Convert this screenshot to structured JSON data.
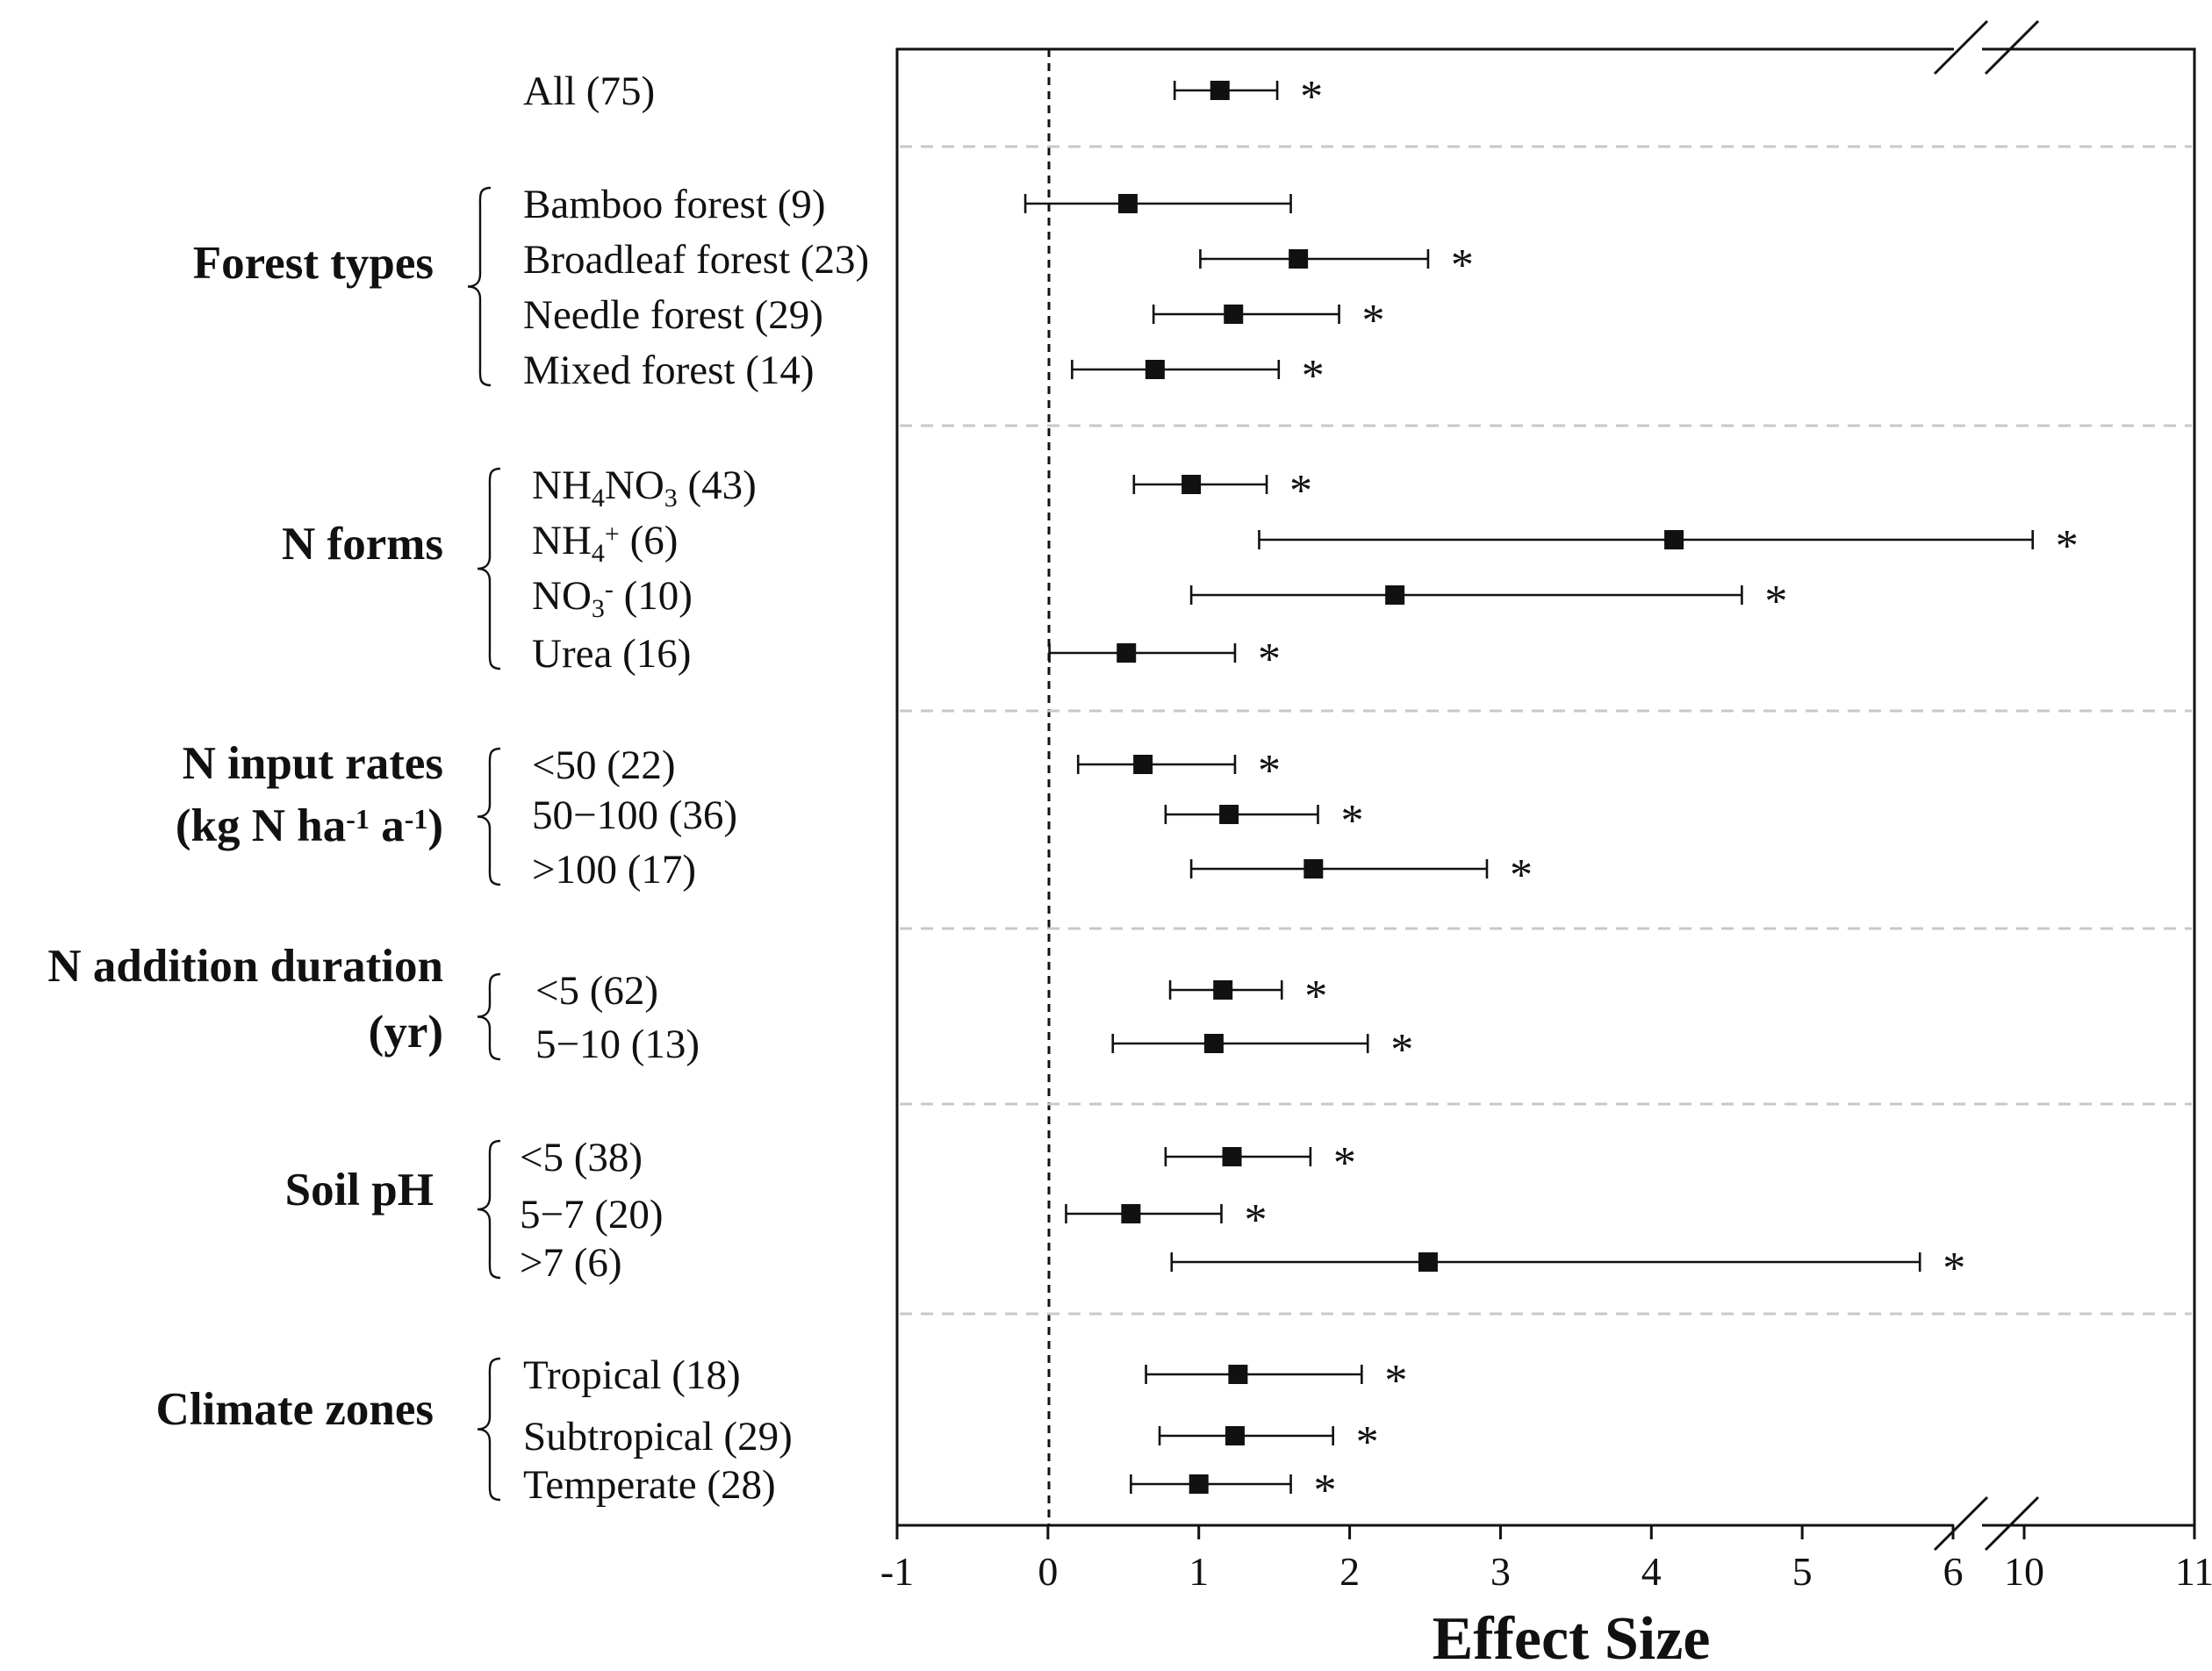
{
  "chart_data": {
    "type": "forest",
    "xlabel": "Effect Size",
    "axis_segments": [
      {
        "range": [
          -1,
          6
        ],
        "ticks": [
          "-1",
          "0",
          "1",
          "2",
          "3",
          "4",
          "5",
          "6"
        ]
      },
      {
        "range": [
          10,
          11
        ],
        "ticks": [
          "10",
          "11"
        ]
      }
    ],
    "reference_line": 0,
    "groups": [
      {
        "name": "",
        "items": [
          {
            "label": "All (75)",
            "mean": 1.14,
            "low": 0.84,
            "high": 1.52,
            "sig": "*"
          }
        ]
      },
      {
        "name": "Forest types",
        "items": [
          {
            "label": "Bamboo forest (9)",
            "mean": 0.53,
            "low": -0.15,
            "high": 1.61,
            "sig": ""
          },
          {
            "label": "Broadleaf forest (23)",
            "mean": 1.66,
            "low": 1.01,
            "high": 2.52,
            "sig": "*"
          },
          {
            "label": "Needle forest (29)",
            "mean": 1.23,
            "low": 0.7,
            "high": 1.93,
            "sig": "*"
          },
          {
            "label": "Mixed forest (14)",
            "mean": 0.71,
            "low": 0.16,
            "high": 1.53,
            "sig": "*"
          }
        ]
      },
      {
        "name": "N forms",
        "items": [
          {
            "label": "NH4NO3 (43)",
            "mean": 0.95,
            "low": 0.57,
            "high": 1.45,
            "sig": "*"
          },
          {
            "label": "NH4+ (6)",
            "mean": 4.15,
            "low": 1.4,
            "high": 10.05,
            "sig": "*"
          },
          {
            "label": "NO3- (10)",
            "mean": 2.3,
            "low": 0.95,
            "high": 4.6,
            "sig": "*"
          },
          {
            "label": "Urea (16)",
            "mean": 0.52,
            "low": 0.01,
            "high": 1.24,
            "sig": "*"
          }
        ]
      },
      {
        "name": "N input rates (kg N ha-1 a-1)",
        "items": [
          {
            "label": "<50 (22)",
            "mean": 0.63,
            "low": 0.2,
            "high": 1.24,
            "sig": "*"
          },
          {
            "label": "50−100 (36)",
            "mean": 1.2,
            "low": 0.78,
            "high": 1.79,
            "sig": "*"
          },
          {
            "label": ">100 (17)",
            "mean": 1.76,
            "low": 0.95,
            "high": 2.91,
            "sig": "*"
          }
        ]
      },
      {
        "name": "N addition duration (yr)",
        "items": [
          {
            "label": "<5 (62)",
            "mean": 1.16,
            "low": 0.81,
            "high": 1.55,
            "sig": "*"
          },
          {
            "label": "5−10 (13)",
            "mean": 1.1,
            "low": 0.43,
            "high": 2.12,
            "sig": "*"
          }
        ]
      },
      {
        "name": "Soil pH",
        "items": [
          {
            "label": "<5 (38)",
            "mean": 1.22,
            "low": 0.78,
            "high": 1.74,
            "sig": "*"
          },
          {
            "label": "5−7 (20)",
            "mean": 0.55,
            "low": 0.12,
            "high": 1.15,
            "sig": "*"
          },
          {
            "label": ">7 (6)",
            "mean": 2.52,
            "low": 0.82,
            "high": 5.78,
            "sig": "*"
          }
        ]
      },
      {
        "name": "Climate zones",
        "items": [
          {
            "label": "Tropical (18)",
            "mean": 1.26,
            "low": 0.65,
            "high": 2.08,
            "sig": "*"
          },
          {
            "label": "Subtropical (29)",
            "mean": 1.24,
            "low": 0.74,
            "high": 1.89,
            "sig": "*"
          },
          {
            "label": "Temperate (28)",
            "mean": 1.0,
            "low": 0.55,
            "high": 1.61,
            "sig": "*"
          }
        ]
      }
    ]
  }
}
